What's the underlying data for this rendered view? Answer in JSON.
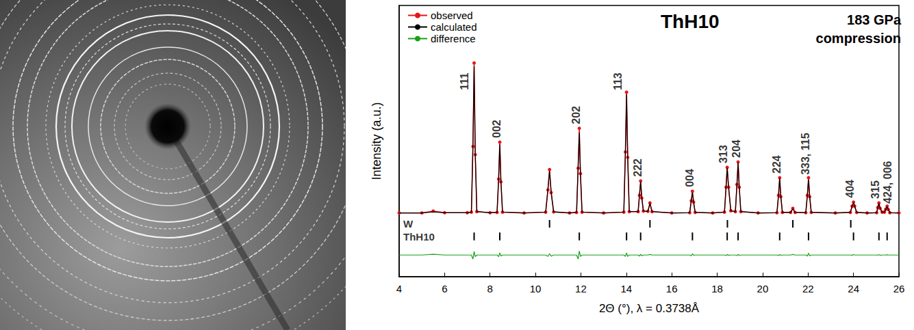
{
  "chart_data": {
    "type": "line",
    "title": "ThH10",
    "subtitle": [
      "183 GPa",
      "compression"
    ],
    "x_label": "2Θ (°), λ = 0.3738Å",
    "y_label": "Intensity (a.u.)",
    "x": [
      4.0,
      5.0,
      5.5,
      6.0,
      7.0,
      7.18,
      7.25,
      7.3,
      7.35,
      7.42,
      8.0,
      8.31,
      8.38,
      8.43,
      8.48,
      8.55,
      9.5,
      10.45,
      10.55,
      10.62,
      10.69,
      10.8,
      11.5,
      11.81,
      11.88,
      11.93,
      11.98,
      12.05,
      13.0,
      13.89,
      13.96,
      14.01,
      14.06,
      14.13,
      14.52,
      14.58,
      14.63,
      14.68,
      14.75,
      14.95,
      15.04,
      15.13,
      16.0,
      16.79,
      16.86,
      16.91,
      16.96,
      17.03,
      17.8,
      18.32,
      18.39,
      18.44,
      18.5,
      18.6,
      18.8,
      18.87,
      18.92,
      18.97,
      19.04,
      19.8,
      20.63,
      20.7,
      20.75,
      20.8,
      20.87,
      21.23,
      21.33,
      21.43,
      21.9,
      21.97,
      22.02,
      22.07,
      22.14,
      23.2,
      23.86,
      23.94,
      24.0,
      24.05,
      24.14,
      24.6,
      25.02,
      25.07,
      25.12,
      25.17,
      25.26,
      25.36,
      25.42,
      25.48,
      25.53,
      25.6,
      26.0
    ],
    "series": [
      {
        "name": "observed",
        "color": "#e8141a",
        "marker": "circle",
        "values": [
          23.5,
          23.5,
          24.2,
          23.6,
          23.6,
          23.8,
          48,
          78.8,
          45,
          24.0,
          23.6,
          23.7,
          36,
          49.6,
          35,
          23.8,
          23.5,
          23.8,
          32,
          39.5,
          31,
          23.9,
          23.5,
          23.7,
          40,
          54.7,
          38,
          23.8,
          23.5,
          23.8,
          46,
          68,
          44,
          24.0,
          24.0,
          30,
          35.3,
          29,
          24.2,
          24.1,
          27.2,
          24.0,
          23.5,
          23.6,
          28,
          31.5,
          27.5,
          23.7,
          23.5,
          23.8,
          33,
          40.3,
          33,
          24.3,
          24.0,
          34,
          42.3,
          33,
          24.0,
          23.5,
          23.6,
          30,
          36.5,
          29.5,
          23.7,
          23.7,
          25.2,
          23.7,
          23.6,
          30,
          36.5,
          29.5,
          23.7,
          23.5,
          23.7,
          26,
          27.5,
          26,
          23.7,
          23.5,
          23.6,
          25.5,
          27.2,
          25.2,
          23.8,
          23.8,
          24.9,
          26,
          24.8,
          23.6,
          23.5
        ]
      },
      {
        "name": "calculated",
        "color": "#000000",
        "values": [
          23.5,
          23.5,
          23.9,
          23.6,
          23.6,
          23.8,
          49.5,
          77.5,
          45.6,
          24.0,
          23.6,
          23.7,
          36.6,
          48.8,
          35.4,
          23.8,
          23.5,
          23.8,
          32.5,
          39.0,
          31.4,
          23.9,
          23.5,
          23.7,
          41.5,
          53.2,
          38.5,
          23.8,
          23.5,
          23.8,
          46.5,
          67.2,
          44.5,
          24.0,
          24.0,
          30.4,
          35.0,
          29.3,
          24.2,
          24.1,
          27.0,
          24.0,
          23.5,
          23.6,
          28.3,
          31.0,
          27.6,
          23.7,
          23.5,
          23.8,
          33.2,
          40.1,
          33.1,
          24.3,
          24.0,
          34.2,
          42.0,
          33.2,
          24.0,
          23.5,
          23.6,
          30.2,
          36.3,
          29.6,
          23.7,
          23.7,
          25.0,
          23.7,
          23.6,
          30.4,
          35.8,
          29.8,
          23.7,
          23.5,
          23.7,
          26.1,
          27.3,
          26.0,
          23.7,
          23.5,
          23.6,
          25.6,
          27.0,
          25.3,
          23.8,
          23.8,
          24.9,
          25.9,
          24.8,
          23.6,
          23.5
        ]
      },
      {
        "name": "difference",
        "color": "#18a018",
        "values": [
          8,
          8,
          8.3,
          8,
          8,
          8,
          6.5,
          9.3,
          7.4,
          8,
          8,
          8,
          7.4,
          8.8,
          7.6,
          8,
          8,
          8,
          7.5,
          8.5,
          7.6,
          8,
          8,
          8,
          6.5,
          9.5,
          7.5,
          8,
          8,
          8,
          7.5,
          8.8,
          7.5,
          8,
          8,
          7.6,
          8.3,
          7.7,
          8,
          8,
          8.2,
          8,
          8,
          8,
          7.7,
          8.5,
          7.9,
          8,
          8,
          8,
          7.8,
          8.2,
          7.9,
          8,
          8,
          7.8,
          8.3,
          7.8,
          8,
          8,
          8,
          7.8,
          8.2,
          7.9,
          8,
          8,
          8.2,
          8,
          8,
          7.6,
          8.7,
          7.7,
          8,
          8,
          8,
          7.9,
          8.2,
          8,
          8,
          8,
          8,
          7.9,
          8.2,
          7.9,
          8,
          8,
          8,
          8.1,
          8,
          8,
          8
        ]
      }
    ],
    "reflections": [
      {
        "name": "W",
        "positions": [
          10.62,
          15.04,
          18.45,
          21.33,
          23.88
        ],
        "ymin": 18.1,
        "ymax": 20.9
      },
      {
        "name": "ThH10",
        "positions": [
          7.3,
          8.43,
          11.93,
          14.01,
          14.63,
          16.91,
          18.44,
          18.92,
          20.75,
          22.02,
          24.0,
          25.12,
          25.48
        ],
        "ymin": 13.4,
        "ymax": 16.3
      }
    ],
    "annotations": [
      {
        "text": "111",
        "x": 6.88,
        "y": 72
      },
      {
        "text": "002",
        "x": 8.3,
        "y": 54.5
      },
      {
        "text": "202",
        "x": 11.8,
        "y": 59.6
      },
      {
        "text": "113",
        "x": 13.62,
        "y": 72
      },
      {
        "text": "222",
        "x": 14.5,
        "y": 40.2
      },
      {
        "text": "004",
        "x": 16.78,
        "y": 36.4
      },
      {
        "text": "313",
        "x": 18.28,
        "y": 45.2
      },
      {
        "text": "204",
        "x": 18.84,
        "y": 47.2
      },
      {
        "text": "224",
        "x": 20.62,
        "y": 41.4
      },
      {
        "text": "333, 115",
        "x": 21.9,
        "y": 45.3
      },
      {
        "text": "404",
        "x": 23.86,
        "y": 32.4
      },
      {
        "text": "315",
        "x": 24.95,
        "y": 32.1
      },
      {
        "text": "424, 006",
        "x": 25.5,
        "y": 34.8
      }
    ],
    "xlim": [
      4,
      26
    ],
    "xticks": [
      4,
      6,
      8,
      10,
      12,
      14,
      16,
      18,
      20,
      22,
      24,
      26
    ],
    "ylim": [
      0,
      100
    ],
    "tick_labels": "x",
    "grid": false,
    "legend": "upper left"
  }
}
